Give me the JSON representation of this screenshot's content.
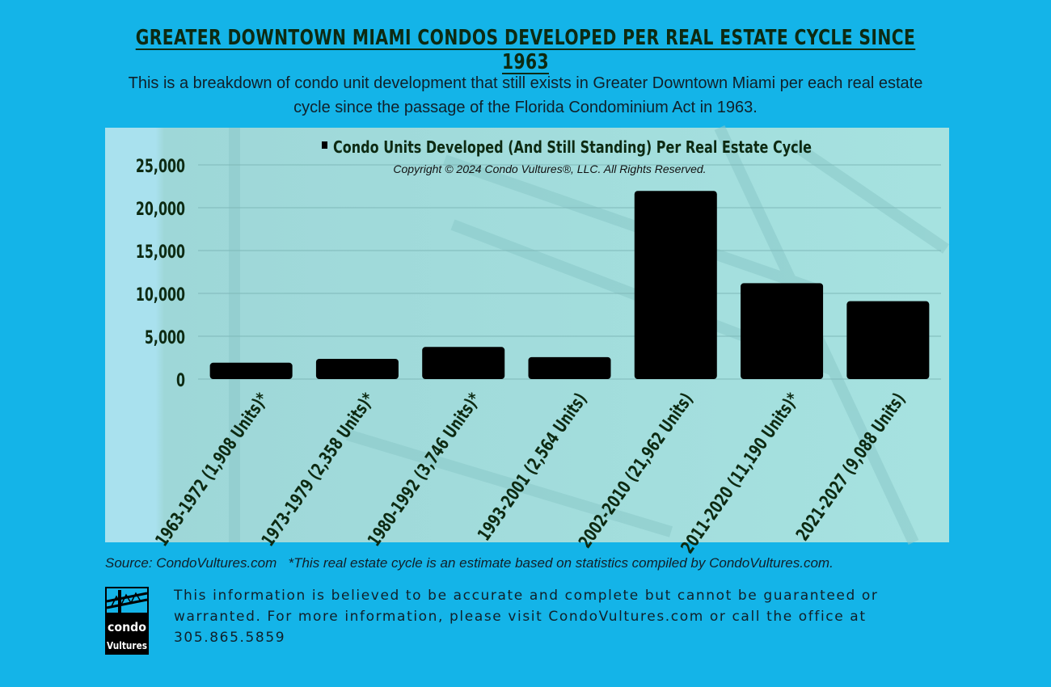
{
  "header": {
    "title": "GREATER DOWNTOWN MIAMI CONDOS DEVELOPED PER REAL ESTATE CYCLE SINCE 1963",
    "subtitle": "This is a breakdown of condo unit development that still exists in Greater Downtown Miami per each real estate cycle since the  passage of the Florida Condominium Act in 1963."
  },
  "chart_data": {
    "type": "bar",
    "title": "Condo Units Developed (And Still Standing) Per Real Estate Cycle",
    "copyright": "Copyright © 2024 Condo Vultures®, LLC. All Rights Reserved.",
    "categories": [
      "1963-1972 (1,908 Units)*",
      "1973-1979 (2,358 Units)*",
      "1980-1992 (3,746 Units)*",
      "1993-2001 (2,564 Units)",
      "2002-2010 (21,962 Units)",
      "2011-2020 (11,190 Units)*",
      "2021-2027 (9,088 Units)"
    ],
    "series": [
      {
        "name": "Condo Units Developed (And Still Standing) Per Real Estate Cycle",
        "values": [
          1908,
          2358,
          3746,
          2564,
          21962,
          11190,
          9088
        ]
      }
    ],
    "yticks": [
      "0",
      "5,000",
      "10,000",
      "15,000",
      "20,000",
      "25,000"
    ],
    "ylim": [
      0,
      25000
    ],
    "grid": true,
    "legend": "top-center",
    "colors": {
      "bar": "#000000",
      "axis_text": "#0d2a12",
      "panel": "#a8e4e2"
    }
  },
  "footer": {
    "source": "Source: CondoVultures.com   *This real estate cycle is an estimate based on statistics compiled by CondoVultures.com.",
    "disclaimer": "This information is believed to be accurate and complete but cannot be guaranteed or warranted. For more information, please visit CondoVultures.com or call the office at 305.865.5859",
    "logo_text_top": "condo",
    "logo_text_bottom": "Vultures"
  }
}
